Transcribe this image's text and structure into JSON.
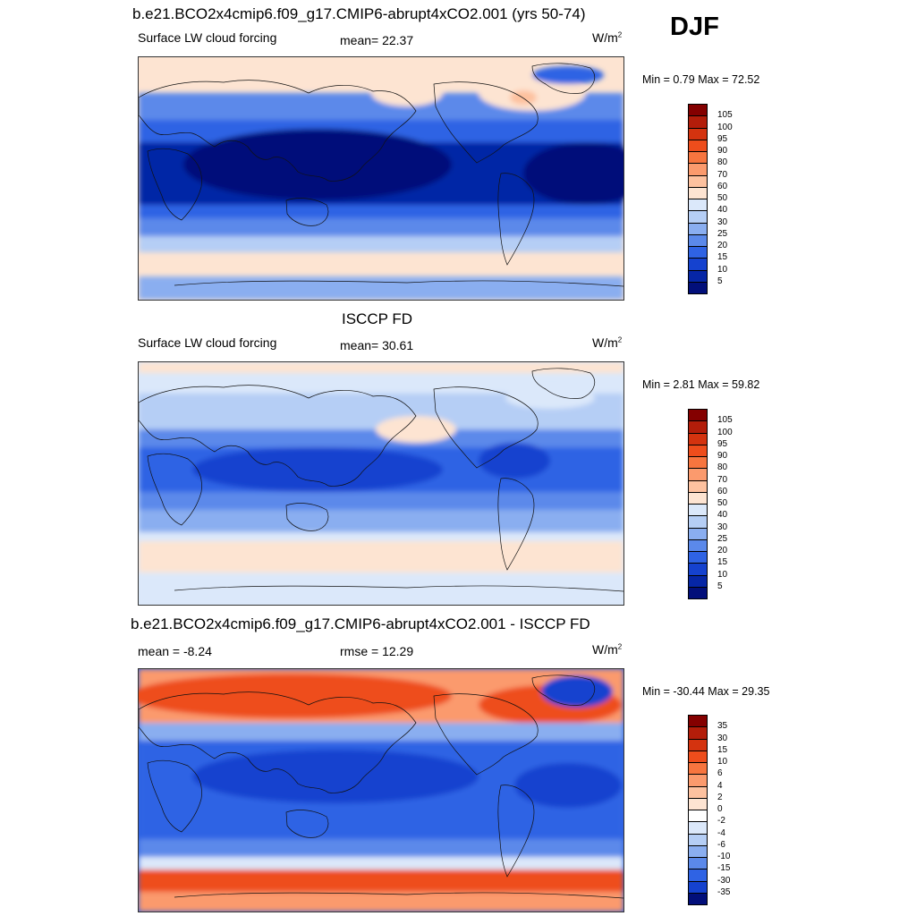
{
  "page": {
    "season_label": "DJF"
  },
  "panels": [
    {
      "id": "model",
      "title": "b.e21.BCO2x4cmip6.f09_g17.CMIP6-abrupt4xCO2.001 (yrs 50-74)",
      "left_label": "Surface LW cloud forcing",
      "center_label": "mean=  22.37",
      "units": "W/m",
      "units_sup": "2",
      "min_max": "Min =   0.79 Max =  72.52",
      "colorbar": {
        "labels": [
          "105",
          "100",
          "95",
          "90",
          "80",
          "70",
          "60",
          "50",
          "40",
          "30",
          "25",
          "20",
          "15",
          "10",
          "5"
        ],
        "colors": [
          "#840000",
          "#b31d0a",
          "#d4330f",
          "#ee4d1c",
          "#f7753f",
          "#fb9a6d",
          "#fdc19f",
          "#fde4d2",
          "#dbe8fa",
          "#b5cef5",
          "#8aaef0",
          "#5b89ea",
          "#2f63e4",
          "#1542cf",
          "#0626a6",
          "#020f7a"
        ]
      },
      "field": "model"
    },
    {
      "id": "obs",
      "title": "ISCCP FD",
      "left_label": "Surface LW cloud forcing",
      "center_label": "mean=  30.61",
      "units": "W/m",
      "units_sup": "2",
      "min_max": "Min =   2.81 Max =  59.82",
      "colorbar": {
        "labels": [
          "105",
          "100",
          "95",
          "90",
          "80",
          "70",
          "60",
          "50",
          "40",
          "30",
          "25",
          "20",
          "15",
          "10",
          "5"
        ],
        "colors": [
          "#840000",
          "#b31d0a",
          "#d4330f",
          "#ee4d1c",
          "#f7753f",
          "#fb9a6d",
          "#fdc19f",
          "#fde4d2",
          "#dbe8fa",
          "#b5cef5",
          "#8aaef0",
          "#5b89ea",
          "#2f63e4",
          "#1542cf",
          "#0626a6",
          "#020f7a"
        ]
      },
      "field": "obs"
    },
    {
      "id": "diff",
      "title": "b.e21.BCO2x4cmip6.f09_g17.CMIP6-abrupt4xCO2.001 - ISCCP FD",
      "left_label": "mean =  -8.24",
      "center_label": "rmse =  12.29",
      "units": "W/m",
      "units_sup": "2",
      "min_max": "Min = -30.44 Max =  29.35",
      "colorbar": {
        "labels": [
          "35",
          "30",
          "15",
          "10",
          "6",
          "4",
          "2",
          "0",
          "-2",
          "-4",
          "-6",
          "-10",
          "-15",
          "-30",
          "-35"
        ],
        "colors": [
          "#840000",
          "#b31d0a",
          "#d4330f",
          "#ee4d1c",
          "#f7753f",
          "#fb9a6d",
          "#fdc19f",
          "#fde4d2",
          "#ffffff",
          "#dbe8fa",
          "#b5cef5",
          "#8aaef0",
          "#5b89ea",
          "#2f63e4",
          "#1542cf",
          "#020f7a"
        ]
      },
      "field": "diff"
    }
  ]
}
